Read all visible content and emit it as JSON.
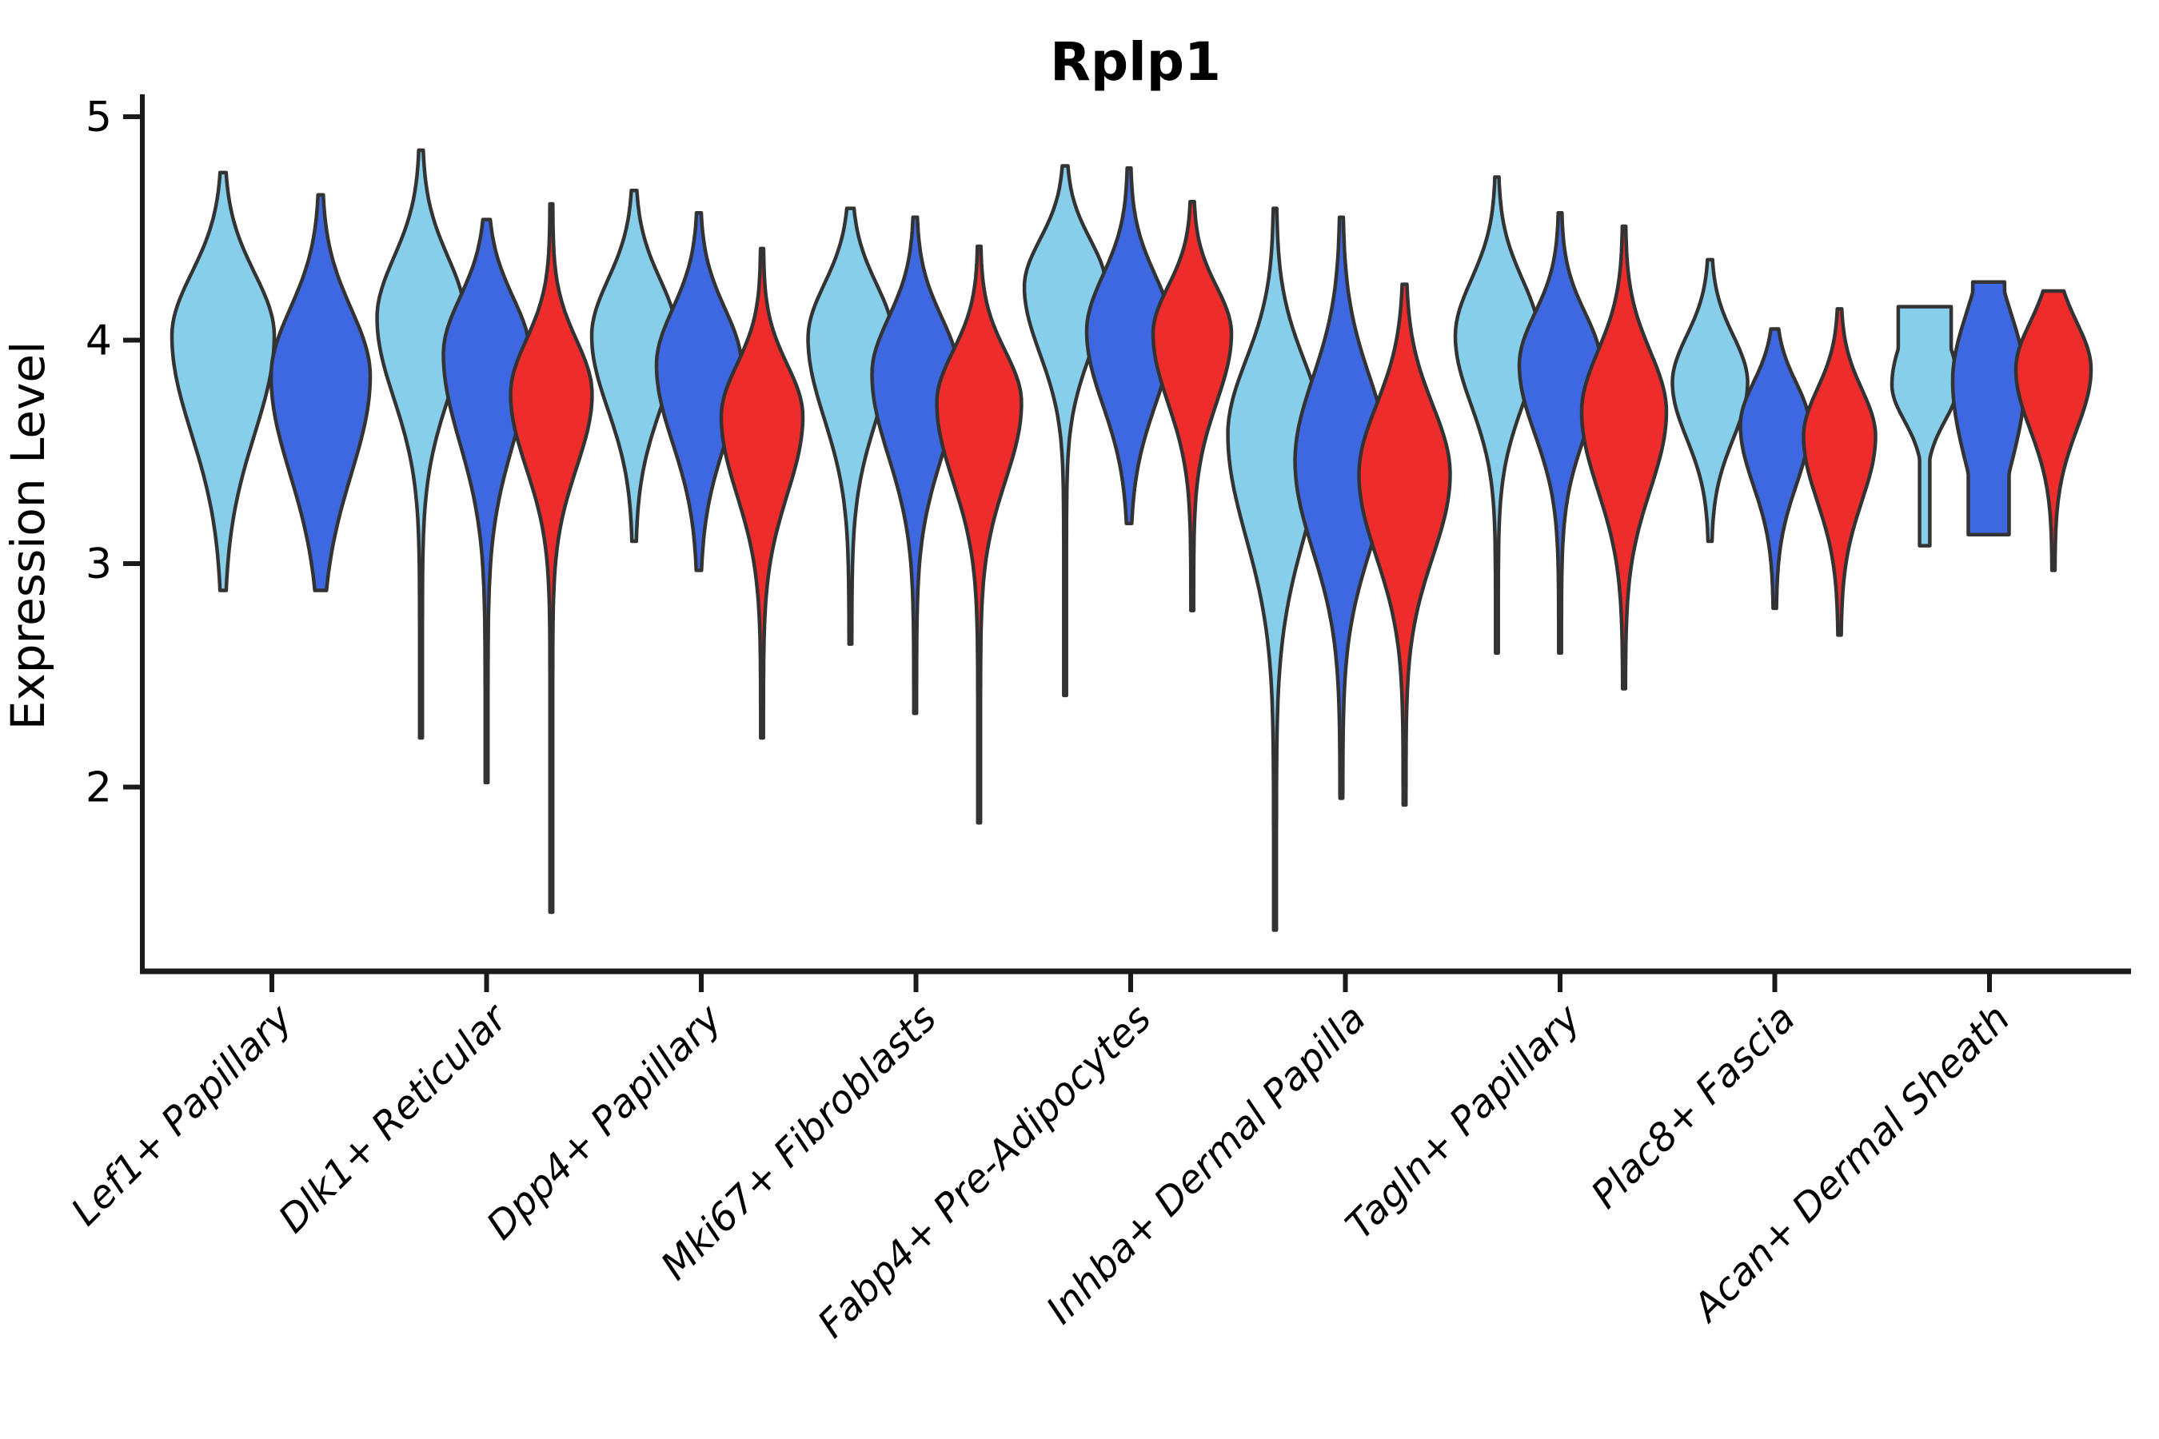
{
  "title": "Rplp1",
  "y_axis": {
    "label": "Expression Level",
    "ticks": [
      "5",
      "4",
      "3",
      "2"
    ],
    "tick_values": [
      5,
      4,
      3,
      2
    ]
  },
  "colors": {
    "series_light_blue": "#87CEEB",
    "series_blue": "#3D68E1",
    "series_red": "#EE2C2C",
    "violin_outline": "#333333",
    "axis": "#1a1a1a",
    "background": "#ffffff"
  },
  "chart_data": {
    "type": "violin",
    "title": "Rplp1",
    "xlabel": "",
    "ylabel": "Expression Level",
    "ylim": [
      1.1,
      5.1
    ],
    "yticks": [
      2,
      3,
      4,
      5
    ],
    "grid": false,
    "legend": "none",
    "series_order": [
      "light_blue",
      "blue",
      "red"
    ],
    "categories": [
      "Lef1+ Papillary",
      "Dlk1+ Reticular",
      "Dpp4+ Papillary",
      "Mki67+ Fibroblasts",
      "Fabp4+ Pre-Adipocytes",
      "Inhba+ Dermal Papilla",
      "Tagln+ Papillary",
      "Plac8+ Fascia",
      "Acan+ Dermal Sheath"
    ],
    "groups": [
      {
        "category": "Lef1+ Papillary",
        "violins": [
          {
            "series": "light_blue",
            "dx": -61,
            "min": 2.88,
            "max": 4.75,
            "mode": 4.02,
            "sTop": 0.28,
            "sBot": 0.44,
            "w": 64
          },
          {
            "series": "blue",
            "dx": 61,
            "min": 2.88,
            "max": 4.65,
            "mode": 3.84,
            "sTop": 0.3,
            "sBot": 0.44,
            "w": 62
          }
        ]
      },
      {
        "category": "Dlk1+ Reticular",
        "violins": [
          {
            "series": "light_blue",
            "dx": -82,
            "min": 2.22,
            "max": 4.85,
            "mode": 4.1,
            "sTop": 0.27,
            "sBot": 0.36,
            "w": 55
          },
          {
            "series": "blue",
            "dx": 0,
            "min": 2.02,
            "max": 4.54,
            "mode": 3.94,
            "sTop": 0.25,
            "sBot": 0.4,
            "w": 54
          },
          {
            "series": "red",
            "dx": 81,
            "min": 1.44,
            "max": 4.61,
            "mode": 3.76,
            "sTop": 0.24,
            "sBot": 0.33,
            "w": 51
          }
        ]
      },
      {
        "category": "Dpp4+ Papillary",
        "violins": [
          {
            "series": "light_blue",
            "dx": -84,
            "min": 3.1,
            "max": 4.67,
            "mode": 4.02,
            "sTop": 0.25,
            "sBot": 0.33,
            "w": 53
          },
          {
            "series": "blue",
            "dx": -3,
            "min": 2.97,
            "max": 4.57,
            "mode": 3.89,
            "sTop": 0.25,
            "sBot": 0.35,
            "w": 53
          },
          {
            "series": "red",
            "dx": 76,
            "min": 2.22,
            "max": 4.41,
            "mode": 3.66,
            "sTop": 0.23,
            "sBot": 0.35,
            "w": 51
          }
        ]
      },
      {
        "category": "Mki67+ Fibroblasts",
        "violins": [
          {
            "series": "light_blue",
            "dx": -82,
            "min": 2.64,
            "max": 4.59,
            "mode": 4.01,
            "sTop": 0.24,
            "sBot": 0.36,
            "w": 53
          },
          {
            "series": "blue",
            "dx": -1,
            "min": 2.33,
            "max": 4.55,
            "mode": 3.85,
            "sTop": 0.25,
            "sBot": 0.37,
            "w": 54
          },
          {
            "series": "red",
            "dx": 79,
            "min": 1.84,
            "max": 4.42,
            "mode": 3.72,
            "sTop": 0.23,
            "sBot": 0.35,
            "w": 53
          }
        ]
      },
      {
        "category": "Fabp4+ Pre-Adipocytes",
        "violins": [
          {
            "series": "light_blue",
            "dx": -82,
            "min": 2.41,
            "max": 4.78,
            "mode": 4.24,
            "sTop": 0.21,
            "sBot": 0.3,
            "w": 51
          },
          {
            "series": "blue",
            "dx": -2,
            "min": 3.18,
            "max": 4.77,
            "mode": 4.04,
            "sTop": 0.25,
            "sBot": 0.33,
            "w": 53
          },
          {
            "series": "red",
            "dx": 77,
            "min": 2.79,
            "max": 4.62,
            "mode": 4.03,
            "sTop": 0.21,
            "sBot": 0.31,
            "w": 49
          }
        ]
      },
      {
        "category": "Inhba+ Dermal Papilla",
        "violins": [
          {
            "series": "light_blue",
            "dx": -88,
            "min": 1.36,
            "max": 4.59,
            "mode": 3.58,
            "sTop": 0.33,
            "sBot": 0.46,
            "w": 59
          },
          {
            "series": "blue",
            "dx": -5,
            "min": 1.95,
            "max": 4.55,
            "mode": 3.46,
            "sTop": 0.37,
            "sBot": 0.4,
            "w": 58
          },
          {
            "series": "red",
            "dx": 74,
            "min": 1.92,
            "max": 4.25,
            "mode": 3.4,
            "sTop": 0.31,
            "sBot": 0.37,
            "w": 57
          }
        ]
      },
      {
        "category": "Tagln+ Papillary",
        "violins": [
          {
            "series": "light_blue",
            "dx": -79,
            "min": 2.6,
            "max": 4.73,
            "mode": 4.02,
            "sTop": 0.25,
            "sBot": 0.31,
            "w": 52
          },
          {
            "series": "blue",
            "dx": 0,
            "min": 2.6,
            "max": 4.57,
            "mode": 3.89,
            "sTop": 0.23,
            "sBot": 0.31,
            "w": 51
          },
          {
            "series": "red",
            "dx": 80,
            "min": 2.44,
            "max": 4.51,
            "mode": 3.68,
            "sTop": 0.27,
            "sBot": 0.35,
            "w": 53
          }
        ]
      },
      {
        "category": "Plac8+ Fascia",
        "violins": [
          {
            "series": "light_blue",
            "dx": -81,
            "min": 3.1,
            "max": 4.36,
            "mode": 3.81,
            "sTop": 0.21,
            "sBot": 0.25,
            "w": 47
          },
          {
            "series": "blue",
            "dx": 0,
            "min": 2.8,
            "max": 4.05,
            "mode": 3.62,
            "sTop": 0.19,
            "sBot": 0.27,
            "w": 43
          },
          {
            "series": "red",
            "dx": 81,
            "min": 2.68,
            "max": 4.14,
            "mode": 3.57,
            "sTop": 0.21,
            "sBot": 0.29,
            "w": 45
          }
        ]
      },
      {
        "category": "Acan+ Dermal Sheath",
        "violins": [
          {
            "series": "light_blue",
            "dx": -81,
            "min": 3.08,
            "max": 4.15,
            "mode": 3.8,
            "sTop": 0.24,
            "sBot": 0.16,
            "w": 41,
            "capTop": 0.8,
            "capBot": 0.12
          },
          {
            "series": "blue",
            "dx": -1,
            "min": 3.13,
            "max": 4.26,
            "mode": 3.82,
            "sTop": 0.3,
            "sBot": 0.38,
            "w": 45,
            "capTop": 0.42,
            "capBot": 0.55
          },
          {
            "series": "red",
            "dx": 80,
            "min": 2.97,
            "max": 4.22,
            "mode": 3.87,
            "sTop": 0.21,
            "sBot": 0.27,
            "w": 47
          }
        ]
      }
    ]
  }
}
